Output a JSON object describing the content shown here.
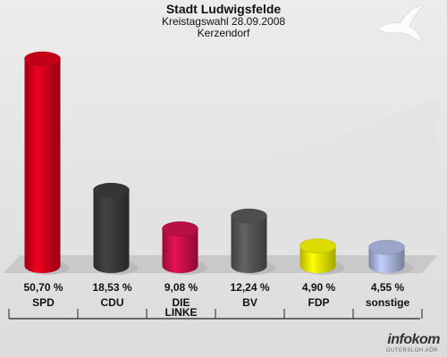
{
  "header": {
    "title": "Stadt Ludwigsfelde",
    "subtitle": "Kreistagswahl 28.09.2008",
    "location": "Kerzendorf"
  },
  "brand": {
    "name": "infokom",
    "sub": "GUTERSLOH AÖR"
  },
  "chart_data": {
    "type": "bar",
    "title": "Stadt Ludwigsfelde",
    "categories": [
      "SPD",
      "CDU",
      "DIE LINKE",
      "BV",
      "FDP",
      "sonstige"
    ],
    "value_labels": [
      "50,70 %",
      "18,53 %",
      "9,08 %",
      "12,24 %",
      "4,90 %",
      "4,55 %"
    ],
    "values": [
      50.7,
      18.53,
      9.08,
      12.24,
      4.9,
      4.55
    ],
    "colors": [
      "#d2001a",
      "#3a3a3a",
      "#c8104a",
      "#555555",
      "#eeee00",
      "#a8b4dc"
    ],
    "ylim": [
      0,
      55
    ],
    "grid": false,
    "legend": "none"
  }
}
